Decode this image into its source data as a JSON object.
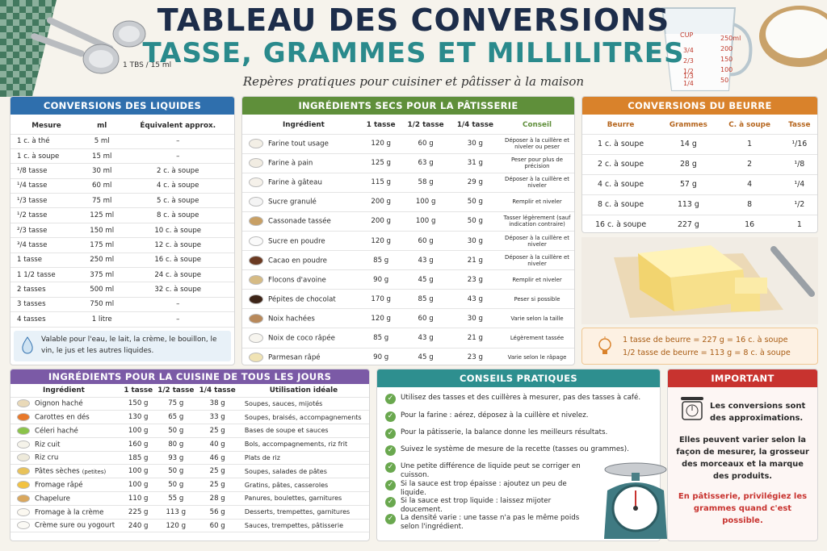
{
  "header": {
    "title1": "TABLEAU DES CONVERSIONS",
    "title2": "TASSE, GRAMMES ET MILLILITRES",
    "subtitle": "Repères pratiques pour cuisiner et pâtisser à la maison",
    "spoon_label": "1 TBS / 15 ml"
  },
  "cup": {
    "left": [
      "CUP",
      "3/4",
      "2/3",
      "1/2",
      "1/3",
      "1/4"
    ],
    "right": [
      "250ml",
      "200",
      "150",
      "100",
      "50"
    ]
  },
  "liquids": {
    "title": "CONVERSIONS DES LIQUIDES",
    "headers": [
      "Mesure",
      "ml",
      "Équivalent approx."
    ],
    "rows": [
      [
        "1 c. à thé",
        "5 ml",
        "–"
      ],
      [
        "1 c. à soupe",
        "15 ml",
        "–"
      ],
      [
        "¹/8 tasse",
        "30 ml",
        "2 c. à soupe"
      ],
      [
        "¹/4 tasse",
        "60 ml",
        "4 c. à soupe"
      ],
      [
        "¹/3 tasse",
        "75 ml",
        "5 c. à soupe"
      ],
      [
        "¹/2 tasse",
        "125 ml",
        "8 c. à soupe"
      ],
      [
        "²/3 tasse",
        "150 ml",
        "10 c. à soupe"
      ],
      [
        "³/4 tasse",
        "175 ml",
        "12 c. à soupe"
      ],
      [
        "1 tasse",
        "250 ml",
        "16 c. à soupe"
      ],
      [
        "1 1/2 tasse",
        "375 ml",
        "24 c. à soupe"
      ],
      [
        "2 tasses",
        "500 ml",
        "32 c. à soupe"
      ],
      [
        "3 tasses",
        "750 ml",
        "–"
      ],
      [
        "4 tasses",
        "1 litre",
        "–"
      ]
    ],
    "note": "Valable pour l'eau, le lait, la crème, le bouillon, le vin, le jus et les autres liquides."
  },
  "dry": {
    "title": "INGRÉDIENTS SECS POUR LA PÂTISSERIE",
    "headers": [
      "Ingrédient",
      "1 tasse",
      "1/2 tasse",
      "1/4 tasse",
      "Conseil"
    ],
    "rows": [
      [
        "Farine tout usage",
        "120 g",
        "60 g",
        "30 g",
        "Déposer à la cuillère et niveler ou peser",
        "#f3efe6"
      ],
      [
        "Farine à pain",
        "125 g",
        "63 g",
        "31 g",
        "Peser pour plus de précision",
        "#f1ece2"
      ],
      [
        "Farine à gâteau",
        "115 g",
        "58 g",
        "29 g",
        "Déposer à la cuillère et niveler",
        "#f5f1ea"
      ],
      [
        "Sucre granulé",
        "200 g",
        "100 g",
        "50 g",
        "Remplir et niveler",
        "#f4f4f4"
      ],
      [
        "Cassonade tassée",
        "200 g",
        "100 g",
        "50 g",
        "Tasser légèrement (sauf indication contraire)",
        "#c8a065"
      ],
      [
        "Sucre en poudre",
        "120 g",
        "60 g",
        "30 g",
        "Déposer à la cuillère et niveler",
        "#fafafa"
      ],
      [
        "Cacao en poudre",
        "85 g",
        "43 g",
        "21 g",
        "Déposer à la cuillère et niveler",
        "#6b3a22"
      ],
      [
        "Flocons d'avoine",
        "90 g",
        "45 g",
        "23 g",
        "Remplir et niveler",
        "#d6bb85"
      ],
      [
        "Pépites de chocolat",
        "170 g",
        "85 g",
        "43 g",
        "Peser si possible",
        "#3d2417"
      ],
      [
        "Noix hachées",
        "120 g",
        "60 g",
        "30 g",
        "Varie selon la taille",
        "#b8895a"
      ],
      [
        "Noix de coco râpée",
        "85 g",
        "43 g",
        "21 g",
        "Légèrement tassée",
        "#f7f5ef"
      ],
      [
        "Parmesan râpé",
        "90 g",
        "45 g",
        "23 g",
        "Varie selon le râpage",
        "#f0e3b4"
      ]
    ]
  },
  "butter": {
    "title": "CONVERSIONS DU BEURRE",
    "headers": [
      "Beurre",
      "Grammes",
      "C. à soupe",
      "Tasse"
    ],
    "rows": [
      [
        "1 c. à soupe",
        "14 g",
        "1",
        "¹/16"
      ],
      [
        "2 c. à soupe",
        "28 g",
        "2",
        "¹/8"
      ],
      [
        "4 c. à soupe",
        "57 g",
        "4",
        "¹/4"
      ],
      [
        "8 c. à soupe",
        "113 g",
        "8",
        "¹/2"
      ],
      [
        "16 c. à soupe",
        "227 g",
        "16",
        "1"
      ]
    ],
    "note1": "1 tasse de beurre = 227 g = 16 c. à soupe",
    "note2": "1/2 tasse de beurre = 113 g = 8 c. à soupe"
  },
  "everyday": {
    "title": "INGRÉDIENTS POUR LA CUISINE DE TOUS LES JOURS",
    "headers": [
      "Ingrédient",
      "1 tasse",
      "1/2 tasse",
      "1/4 tasse",
      "Utilisation idéale"
    ],
    "rows": [
      [
        "Oignon haché",
        "150 g",
        "75 g",
        "38 g",
        "Soupes, sauces, mijotés",
        "#e9d9b8"
      ],
      [
        "Carottes en dés",
        "130 g",
        "65 g",
        "33 g",
        "Soupes, braisés, accompagnements",
        "#e8782a"
      ],
      [
        "Céleri haché",
        "100 g",
        "50 g",
        "25 g",
        "Bases de soupe et sauces",
        "#8bc34a"
      ],
      [
        "Riz cuit",
        "160 g",
        "80 g",
        "40 g",
        "Bols, accompagnements, riz frit",
        "#f5f3ea"
      ],
      [
        "Riz cru",
        "185 g",
        "93 g",
        "46 g",
        "Plats de riz",
        "#eeeadb"
      ],
      [
        "Pâtes sèches",
        "100 g",
        "50 g",
        "25 g",
        "Soupes, salades de pâtes",
        "#e8c25a"
      ],
      [
        "Fromage râpé",
        "100 g",
        "50 g",
        "25 g",
        "Gratins, pâtes, casseroles",
        "#f2c240"
      ],
      [
        "Chapelure",
        "110 g",
        "55 g",
        "28 g",
        "Panures, boulettes, garnitures",
        "#d9a75e"
      ],
      [
        "Fromage à la crème",
        "225 g",
        "113 g",
        "56 g",
        "Desserts, trempettes, garnitures",
        "#fbf8f0"
      ],
      [
        "Crème sure ou yogourt",
        "240 g",
        "120 g",
        "60 g",
        "Sauces, trempettes, pâtisserie",
        "#fbfaf5"
      ]
    ],
    "pates_suffix": "(petites)"
  },
  "tips": {
    "title": "CONSEILS PRATIQUES",
    "items": [
      "Utilisez des tasses et des cuillères à mesurer, pas des tasses à café.",
      "Pour la farine : aérez, déposez à la cuillère et nivelez.",
      "Pour la pâtisserie, la balance donne les meilleurs résultats.",
      "Suivez le système de mesure de la recette (tasses ou grammes).",
      "Une petite différence de liquide peut se corriger en cuisson.",
      "Si la sauce est trop épaisse : ajoutez un peu de liquide.",
      "Si la sauce est trop liquide : laissez mijoter doucement.",
      "La densité varie : une tasse n'a pas le même poids selon l'ingrédient."
    ]
  },
  "important": {
    "title": "IMPORTANT",
    "p1": "Les conversions sont des approximations.",
    "p2": "Elles peuvent varier selon la façon de mesurer, la grosseur des morceaux et la marque des produits.",
    "p3": "En pâtisserie, privilégiez les grammes quand c'est possible."
  },
  "colors": {
    "blue": "#2f6fad",
    "green": "#5f8f3a",
    "orange": "#d9822b",
    "purple": "#7b5aa6",
    "teal": "#2e8f8f",
    "red": "#c8332f"
  }
}
